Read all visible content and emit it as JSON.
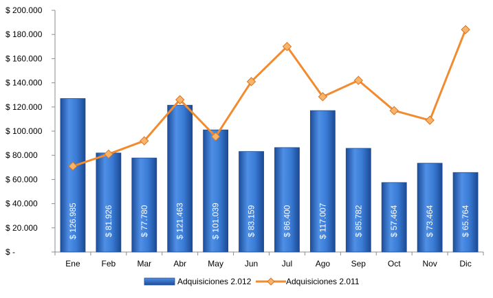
{
  "chart_data": {
    "type": "bar",
    "categories": [
      "Ene",
      "Feb",
      "Mar",
      "Abr",
      "May",
      "Jun",
      "Jul",
      "Ago",
      "Sep",
      "Oct",
      "Nov",
      "Dic"
    ],
    "series": [
      {
        "name": "Adquisiciones 2.012",
        "type": "bar",
        "values": [
          126985,
          81926,
          77780,
          121463,
          101039,
          83159,
          86400,
          117007,
          85782,
          57464,
          73464,
          65764
        ],
        "labels": [
          "$ 126.985",
          "$ 81.926",
          "$ 77.780",
          "$ 121.463",
          "$ 101.039",
          "$ 83.159",
          "$ 86.400",
          "$ 117.007",
          "$ 85.782",
          "$ 57.464",
          "$ 73.464",
          "$ 65.764"
        ],
        "color": "#3a7bd5"
      },
      {
        "name": "Adquisiciones 2.011",
        "type": "line",
        "values": [
          71000,
          81000,
          92000,
          126000,
          95500,
          141000,
          170000,
          128500,
          142000,
          117000,
          109000,
          184000
        ],
        "color": "#f28a2e"
      }
    ],
    "yaxis": {
      "min": 0,
      "max": 200000,
      "ticks": [
        0,
        20000,
        40000,
        60000,
        80000,
        100000,
        120000,
        140000,
        160000,
        180000,
        200000
      ],
      "tick_labels": [
        "$ -",
        "$ 20.000",
        "$ 40.000",
        "$ 60.000",
        "$ 80.000",
        "$ 100.000",
        "$ 120.000",
        "$ 140.000",
        "$ 160.000",
        "$ 180.000",
        "$ 200.000"
      ]
    },
    "grid": false,
    "legend": "bottom",
    "title": "",
    "xlabel": "",
    "ylabel": ""
  }
}
